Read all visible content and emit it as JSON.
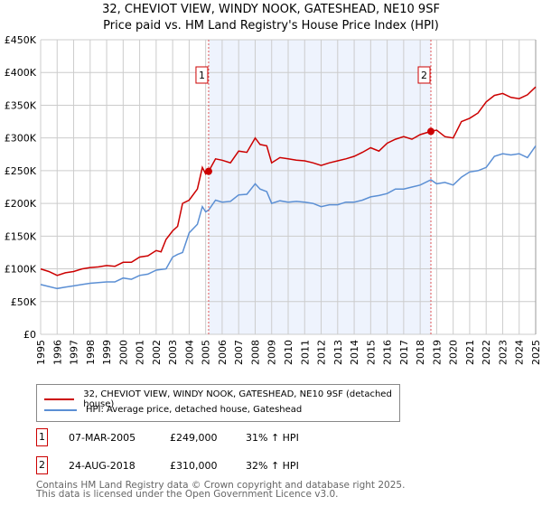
{
  "title_line1": "32, CHEVIOT VIEW, WINDY NOOK, GATESHEAD, NE10 9SF",
  "title_line2": "Price paid vs. HM Land Registry's House Price Index (HPI)",
  "chart_data": {
    "type": "line",
    "ylim": [
      0,
      450000
    ],
    "xlim": [
      1995,
      2025
    ],
    "grid": true,
    "y_ticks": [
      {
        "v": 0,
        "label": "£0"
      },
      {
        "v": 50000,
        "label": "£50K"
      },
      {
        "v": 100000,
        "label": "£100K"
      },
      {
        "v": 150000,
        "label": "£150K"
      },
      {
        "v": 200000,
        "label": "£200K"
      },
      {
        "v": 250000,
        "label": "£250K"
      },
      {
        "v": 300000,
        "label": "£300K"
      },
      {
        "v": 350000,
        "label": "£350K"
      },
      {
        "v": 400000,
        "label": "£400K"
      },
      {
        "v": 450000,
        "label": "£450K"
      }
    ],
    "x_ticks": [
      "1995",
      "1996",
      "1997",
      "1998",
      "1999",
      "2000",
      "2001",
      "2002",
      "2003",
      "2004",
      "2005",
      "2006",
      "2007",
      "2008",
      "2009",
      "2010",
      "2011",
      "2012",
      "2013",
      "2014",
      "2015",
      "2016",
      "2017",
      "2018",
      "2019",
      "2020",
      "2021",
      "2022",
      "2023",
      "2024",
      "2025"
    ],
    "shaded_range": [
      2005.18,
      2018.65
    ],
    "series": [
      {
        "name": "32, CHEVIOT VIEW, WINDY NOOK, GATESHEAD, NE10 9SF (detached house)",
        "color": "#cc0000",
        "x": [
          1995,
          1995.5,
          1996,
          1996.5,
          1997,
          1997.5,
          1998,
          1998.5,
          1999,
          1999.5,
          2000,
          2000.5,
          2001,
          2001.5,
          2002,
          2002.3,
          2002.6,
          2003,
          2003.3,
          2003.6,
          2004,
          2004.5,
          2004.8,
          2005,
          2005.18,
          2005.6,
          2006,
          2006.5,
          2007,
          2007.5,
          2008,
          2008.3,
          2008.7,
          2009,
          2009.5,
          2010,
          2010.5,
          2011,
          2011.5,
          2012,
          2012.5,
          2013,
          2013.5,
          2014,
          2014.5,
          2015,
          2015.5,
          2016,
          2016.5,
          2017,
          2017.5,
          2018,
          2018.65,
          2019,
          2019.5,
          2020,
          2020.5,
          2021,
          2021.5,
          2022,
          2022.5,
          2023,
          2023.5,
          2024,
          2024.5,
          2025
        ],
        "y": [
          100000,
          96000,
          90000,
          94000,
          96000,
          100000,
          102000,
          103000,
          105000,
          104000,
          110000,
          110000,
          118000,
          120000,
          128000,
          126000,
          145000,
          158000,
          165000,
          200000,
          205000,
          222000,
          255000,
          245000,
          249000,
          268000,
          266000,
          262000,
          280000,
          278000,
          300000,
          290000,
          288000,
          262000,
          270000,
          268000,
          266000,
          265000,
          262000,
          258000,
          262000,
          265000,
          268000,
          272000,
          278000,
          285000,
          280000,
          292000,
          298000,
          302000,
          298000,
          305000,
          310000,
          312000,
          302000,
          300000,
          325000,
          330000,
          338000,
          355000,
          365000,
          368000,
          362000,
          360000,
          366000,
          378000
        ]
      },
      {
        "name": "HPI: Average price, detached house, Gateshead",
        "color": "#5b8fd4",
        "x": [
          1995,
          1995.5,
          1996,
          1996.5,
          1997,
          1997.5,
          1998,
          1998.5,
          1999,
          1999.5,
          2000,
          2000.5,
          2001,
          2001.5,
          2002,
          2002.3,
          2002.6,
          2003,
          2003.3,
          2003.6,
          2004,
          2004.5,
          2004.8,
          2005,
          2005.18,
          2005.6,
          2006,
          2006.5,
          2007,
          2007.5,
          2008,
          2008.3,
          2008.7,
          2009,
          2009.5,
          2010,
          2010.5,
          2011,
          2011.5,
          2012,
          2012.5,
          2013,
          2013.5,
          2014,
          2014.5,
          2015,
          2015.5,
          2016,
          2016.5,
          2017,
          2017.5,
          2018,
          2018.65,
          2019,
          2019.5,
          2020,
          2020.5,
          2021,
          2021.5,
          2022,
          2022.5,
          2023,
          2023.5,
          2024,
          2024.5,
          2025
        ],
        "y": [
          76000,
          73000,
          70000,
          72000,
          74000,
          76000,
          78000,
          79000,
          80000,
          80000,
          86000,
          84000,
          90000,
          92000,
          98000,
          99000,
          100000,
          118000,
          122000,
          125000,
          155000,
          168000,
          195000,
          187000,
          190000,
          205000,
          202000,
          203000,
          213000,
          214000,
          230000,
          222000,
          218000,
          200000,
          204000,
          202000,
          203000,
          202000,
          200000,
          195000,
          198000,
          198000,
          202000,
          202000,
          205000,
          210000,
          212000,
          215000,
          222000,
          222000,
          225000,
          228000,
          236000,
          230000,
          232000,
          228000,
          240000,
          248000,
          250000,
          255000,
          272000,
          276000,
          274000,
          276000,
          270000,
          288000
        ]
      }
    ],
    "annotations": [
      {
        "label": "1",
        "x": 2005.18,
        "y": 249000
      },
      {
        "label": "2",
        "x": 2018.65,
        "y": 310000
      }
    ]
  },
  "legend": {
    "red": "32, CHEVIOT VIEW, WINDY NOOK, GATESHEAD, NE10 9SF (detached house)",
    "blue": "HPI: Average price, detached house, Gateshead"
  },
  "sales": [
    {
      "num": "1",
      "date": "07-MAR-2005",
      "price": "£249,000",
      "hpi": "31% ↑ HPI"
    },
    {
      "num": "2",
      "date": "24-AUG-2018",
      "price": "£310,000",
      "hpi": "32% ↑ HPI"
    }
  ],
  "footer_line1": "Contains HM Land Registry data © Crown copyright and database right 2025.",
  "footer_line2": "This data is licensed under the Open Government Licence v3.0."
}
